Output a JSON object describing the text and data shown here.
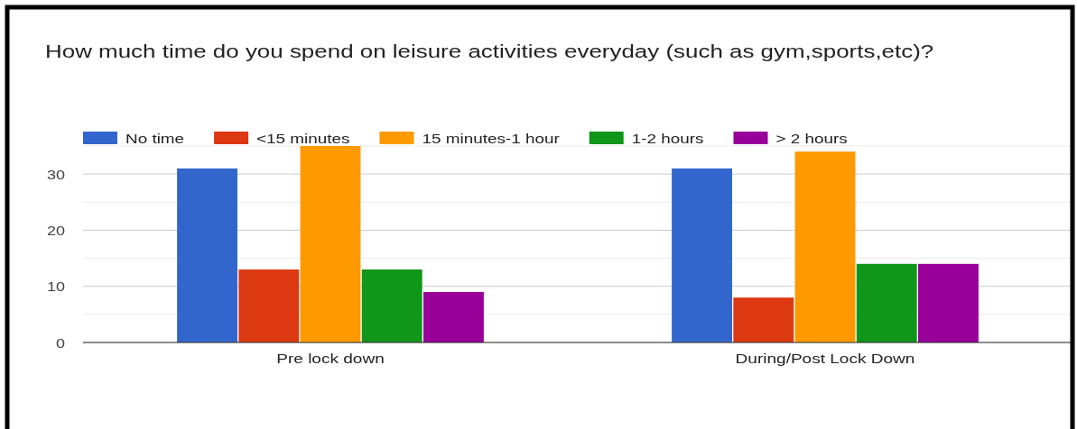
{
  "chart_data": {
    "type": "bar",
    "title": "How much time do you spend on leisure activities everyday (such as gym,sports,etc)?",
    "categories": [
      "Pre lock down",
      "During/Post Lock Down"
    ],
    "series": [
      {
        "name": "No time",
        "color": "#3366cc",
        "values": [
          31,
          31
        ]
      },
      {
        "name": "<15 minutes",
        "color": "#dc3912",
        "values": [
          13,
          8
        ]
      },
      {
        "name": "15 minutes-1 hour",
        "color": "#ff9900",
        "values": [
          35,
          34
        ]
      },
      {
        "name": "1-2 hours",
        "color": "#109618",
        "values": [
          13,
          14
        ]
      },
      {
        "name": "> 2 hours",
        "color": "#990099",
        "values": [
          9,
          14
        ]
      }
    ],
    "ylim": [
      0,
      35
    ],
    "yticks": [
      0,
      {
        "value": 5,
        "label": null
      },
      10,
      {
        "value": 15,
        "label": null
      },
      20,
      {
        "value": 25,
        "label": null
      },
      30,
      {
        "value": 35,
        "label": null
      }
    ],
    "grid": "y",
    "legend": "top"
  }
}
